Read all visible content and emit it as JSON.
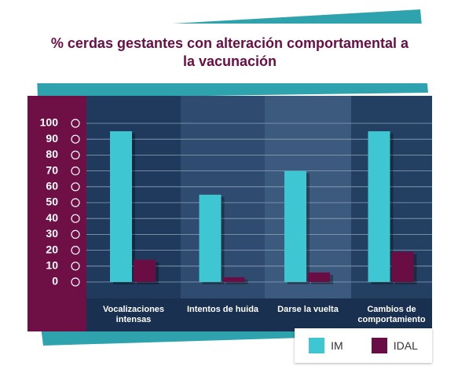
{
  "chart_data": {
    "type": "bar",
    "title": "% cerdas gestantes con alteración comportamental a la vacunación",
    "categories": [
      "Vocalizaciones intensas",
      "Intentos de huida",
      "Darse la vuelta",
      "Cambios de comportamiento"
    ],
    "series": [
      {
        "name": "IM",
        "color": "#3ec6d3",
        "values": [
          95,
          55,
          70,
          95
        ]
      },
      {
        "name": "IDAL",
        "color": "#6b0d45",
        "values": [
          14,
          3,
          6,
          19
        ]
      }
    ],
    "ylim": [
      0,
      100
    ],
    "yticks": [
      0,
      10,
      20,
      30,
      40,
      50,
      60,
      70,
      80,
      90,
      100
    ],
    "grid": true
  }
}
